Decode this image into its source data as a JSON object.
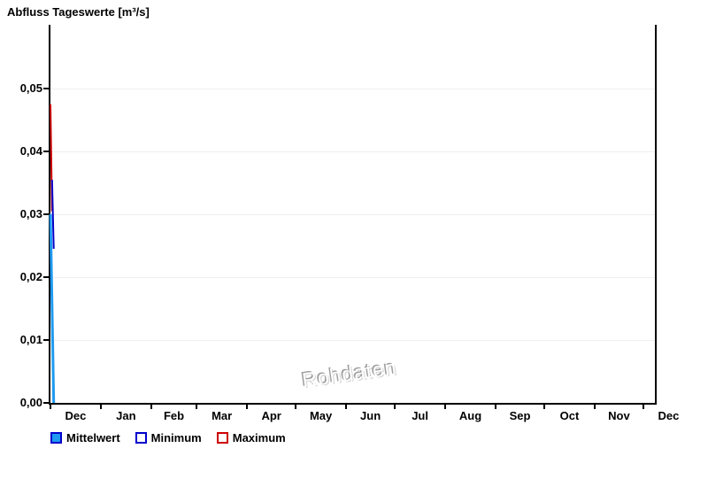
{
  "title": "Abfluss Tageswerte [m³/s]",
  "watermark": "Rohdaten",
  "colors": {
    "axis": "#000000",
    "grid": "#efefef",
    "maximum": "#cc0000",
    "minimum": "#0000cc",
    "mittelwert": "#1e9af0",
    "mittelwert_border": "#0000cc"
  },
  "legend": {
    "items": [
      {
        "label": "Mittelwert",
        "fill": "#1e9af0",
        "border": "#0000cc"
      },
      {
        "label": "Minimum",
        "fill": "#ffffff",
        "border": "#0000cc"
      },
      {
        "label": "Maximum",
        "fill": "#ffffff",
        "border": "#cc0000"
      }
    ]
  },
  "chart_data": {
    "type": "line",
    "title": "Abfluss Tageswerte [m³/s]",
    "xlabel": "",
    "ylabel": "",
    "y_tick_labels": [
      "0,00",
      "0,01",
      "0,02",
      "0,03",
      "0,04",
      "0,05"
    ],
    "y_tick_values": [
      0,
      0.01,
      0.02,
      0.03,
      0.04,
      0.05
    ],
    "ylim": [
      0,
      0.06
    ],
    "x_tick_labels": [
      "Dec",
      "Jan",
      "Feb",
      "Mar",
      "Apr",
      "May",
      "Jun",
      "Jul",
      "Aug",
      "Sep",
      "Oct",
      "Nov",
      "Dec"
    ],
    "x_axis_span": "one year of daily values, December through December",
    "grid": true,
    "legend_position": "bottom-left",
    "annotations": [
      "Rohdaten"
    ],
    "series": [
      {
        "name": "Maximum",
        "color": "#cc0000",
        "points": [
          {
            "day": 0,
            "value": 0.0475
          },
          {
            "day": 1,
            "value": 0.0305
          }
        ]
      },
      {
        "name": "Minimum",
        "color": "#0000cc",
        "points": [
          {
            "day": 1,
            "value": 0.0355
          },
          {
            "day": 2,
            "value": 0.0245
          }
        ]
      },
      {
        "name": "Mittelwert",
        "color": "#1e9af0",
        "points": [
          {
            "day": 0,
            "value": 0.03
          },
          {
            "day": 2,
            "value": 0.0
          }
        ]
      }
    ]
  }
}
